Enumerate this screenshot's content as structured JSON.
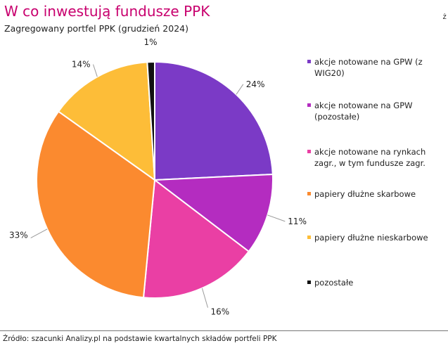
{
  "header": {
    "title": "W co inwestują fundusze PPK",
    "subtitle": "Zagregowany portfel PPK (grudzień 2024)",
    "corner_mark": "ż"
  },
  "chart_data": {
    "type": "pie",
    "title": "W co inwestują fundusze PPK",
    "subtitle": "Zagregowany portfel PPK (grudzień 2024)",
    "legend_position": "right",
    "slices": [
      {
        "label": "akcje notowane na GPW (z WIG20)",
        "value": 24,
        "value_label": "24%",
        "color": "#7b3ac6"
      },
      {
        "label": "akcje notowane na GPW (pozostałe)",
        "value": 11,
        "value_label": "11%",
        "color": "#b42cc0"
      },
      {
        "label": "akcje notowane na rynkach zagr., w tym fundusze zagr.",
        "value": 16,
        "value_label": "16%",
        "color": "#ea3fa4"
      },
      {
        "label": "papiery dłużne skarbowe",
        "value": 33,
        "value_label": "33%",
        "color": "#fb8a2f"
      },
      {
        "label": "papiery dłużne nieskarbowe",
        "value": 14,
        "value_label": "14%",
        "color": "#fdbd38"
      },
      {
        "label": "pozostałe",
        "value": 1,
        "value_label": "1%",
        "color": "#111111"
      }
    ]
  },
  "footer": {
    "source": "Źródło: szacunki Analizy.pl na podstawie kwartalnych składów portfeli PPK"
  }
}
